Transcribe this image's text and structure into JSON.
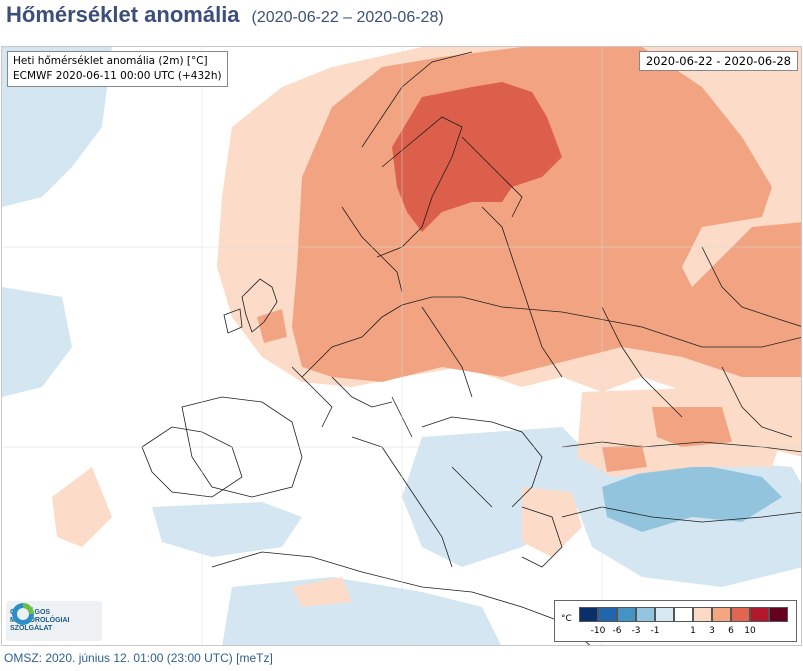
{
  "header": {
    "title": "Hőmérséklet anomália",
    "date_range": "(2020-06-22 – 2020-06-28)"
  },
  "map": {
    "info_line1": "Heti hőmérséklet anomália (2m) [°C]",
    "info_line2": "ECMWF 2020-06-11 00:00 UTC (+432h)",
    "date_box": "2020-06-22 - 2020-06-28",
    "legend": {
      "unit": "°C",
      "swatches": [
        "#08306b",
        "#2166ac",
        "#4393c3",
        "#92c5de",
        "#d6e8f2",
        "#ffffff",
        "#fcd9c4",
        "#f4a582",
        "#e2664f",
        "#b2182b",
        "#67001f"
      ],
      "ticks": [
        "-10",
        "-6",
        "-3",
        "-1",
        "1",
        "3",
        "6",
        "10"
      ]
    },
    "colors": {
      "warm_light": "#fcdcc8",
      "warm_mid": "#f2a482",
      "warm_strong": "#db5f4a",
      "cool_light": "#d3e6f1",
      "cool_mid": "#93c4de",
      "borders": "#1e1e1e"
    }
  },
  "logo": {
    "line1": "ORSZÁGOS",
    "line2": "METEOROLÓGIAI",
    "line3": "SZOLGÁLAT"
  },
  "footer": {
    "text": "OMSZ: 2020. június 12. 01:00 (23:00  UTC)  [meTz]"
  }
}
